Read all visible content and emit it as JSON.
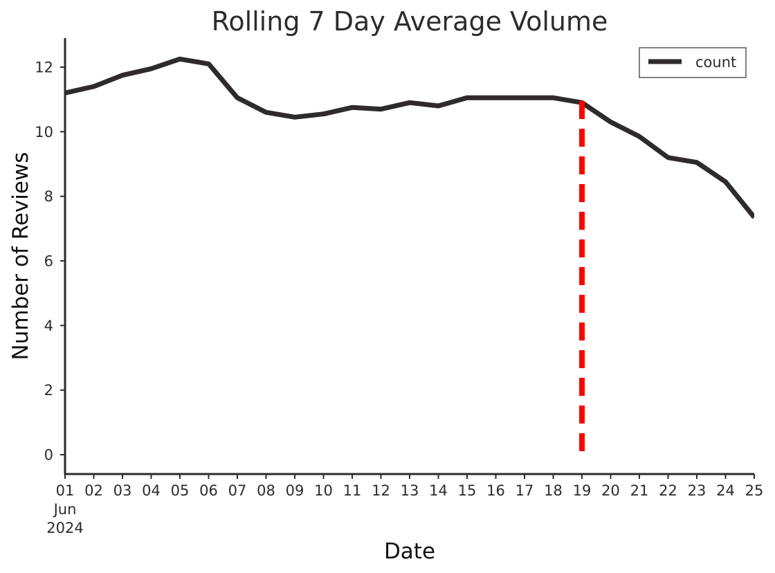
{
  "chart_data": {
    "type": "line",
    "title": "Rolling 7 Day Average Volume",
    "xlabel": "Date",
    "ylabel": "Number of Reviews",
    "x_tick_labels": [
      "01",
      "02",
      "03",
      "04",
      "05",
      "06",
      "07",
      "08",
      "09",
      "10",
      "11",
      "12",
      "13",
      "14",
      "15",
      "16",
      "17",
      "18",
      "19",
      "20",
      "21",
      "22",
      "23",
      "24",
      "25"
    ],
    "x_tick_sublabels": [
      "Jun",
      "2024"
    ],
    "x_dates": [
      "2024-06-01",
      "2024-06-02",
      "2024-06-03",
      "2024-06-04",
      "2024-06-05",
      "2024-06-06",
      "2024-06-07",
      "2024-06-08",
      "2024-06-09",
      "2024-06-10",
      "2024-06-11",
      "2024-06-12",
      "2024-06-13",
      "2024-06-14",
      "2024-06-15",
      "2024-06-16",
      "2024-06-17",
      "2024-06-18",
      "2024-06-19",
      "2024-06-20",
      "2024-06-21",
      "2024-06-22",
      "2024-06-23",
      "2024-06-24",
      "2024-06-25"
    ],
    "y_ticks": [
      0,
      2,
      4,
      6,
      8,
      10,
      12
    ],
    "ylim": [
      -0.6,
      12.9
    ],
    "xlim": [
      "2024-06-01",
      "2024-06-25"
    ],
    "grid": false,
    "legend_position": "top-right",
    "series": [
      {
        "name": "count",
        "color": "#2f2a2b",
        "values": [
          11.2,
          11.4,
          11.75,
          11.95,
          12.25,
          12.1,
          11.05,
          10.6,
          10.45,
          10.55,
          10.75,
          10.7,
          10.9,
          10.8,
          11.05,
          11.05,
          11.05,
          11.05,
          10.9,
          10.3,
          9.85,
          9.2,
          9.05,
          8.45,
          7.35
        ]
      }
    ],
    "reference_line": {
      "x": "2024-06-19",
      "y_from": 0,
      "y_to": 10.95,
      "color": "#ff0000",
      "style": "dashed"
    }
  }
}
